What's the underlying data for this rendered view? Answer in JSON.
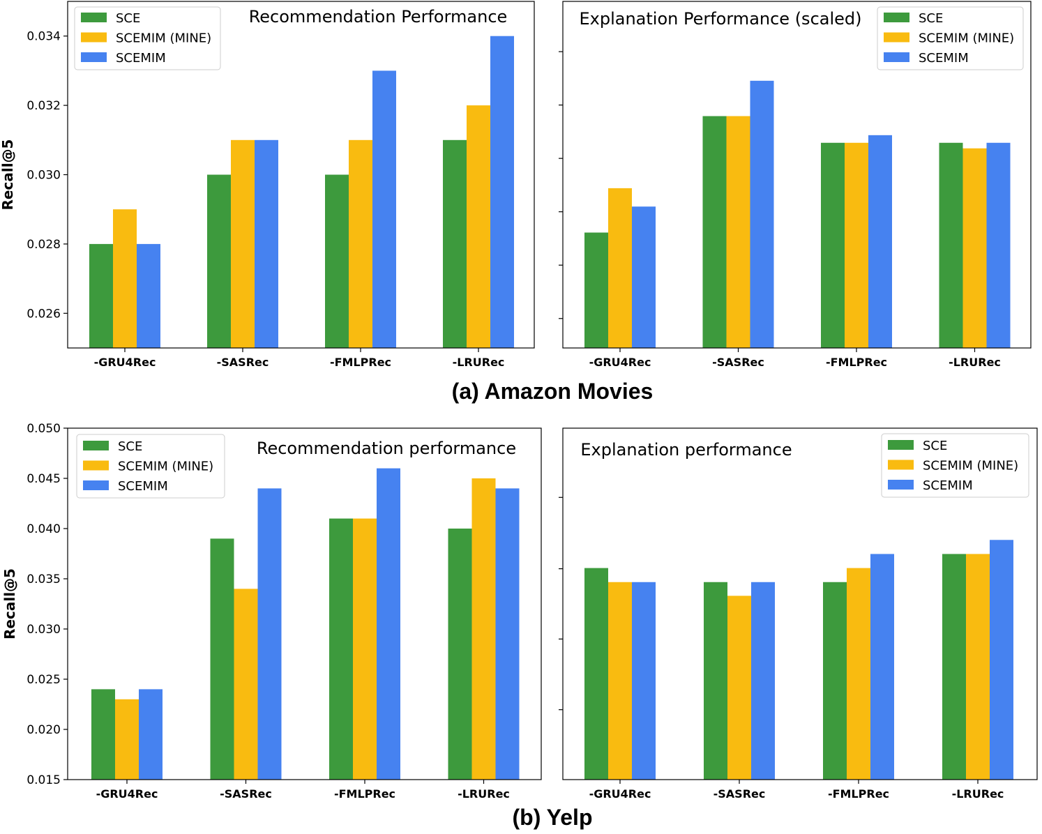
{
  "figure": {
    "captions": [
      "(a) Amazon Movies",
      "(b) Yelp"
    ]
  },
  "colors": {
    "SCE": "#3d9a3d",
    "SCEMIM (MINE)": "#f9bb10",
    "SCEMIM": "#4682f0"
  },
  "chart_data": [
    {
      "type": "bar",
      "title": "Recommendation Performance",
      "ylabel": "Recall@5",
      "categories": [
        "-GRU4Rec",
        "-SASRec",
        "-FMLPRec",
        "-LRURec"
      ],
      "ylim": [
        0.025,
        0.035
      ],
      "yticks": [
        0.026,
        0.028,
        0.03,
        0.032,
        0.034
      ],
      "yticklabels": [
        "0.026",
        "0.028",
        "0.030",
        "0.032",
        "0.034"
      ],
      "legend_position": "top-left",
      "series": [
        {
          "name": "SCE",
          "values": [
            0.028,
            0.03,
            0.03,
            0.031
          ]
        },
        {
          "name": "SCEMIM (MINE)",
          "values": [
            0.029,
            0.031,
            0.031,
            0.032
          ]
        },
        {
          "name": "SCEMIM",
          "values": [
            0.028,
            0.031,
            0.033,
            0.034
          ]
        }
      ]
    },
    {
      "type": "bar",
      "title": "Explanation Performance (scaled)",
      "ylabel": "",
      "categories": [
        "-GRU4Rec",
        "-SASRec",
        "-FMLPRec",
        "-LRURec"
      ],
      "ylim": [
        0,
        1
      ],
      "yticks": [
        0.085,
        0.239,
        0.393,
        0.547,
        0.701,
        0.855
      ],
      "yticklabels": [
        "",
        "",
        "",
        "",
        "",
        ""
      ],
      "legend_position": "top-right",
      "series": [
        {
          "name": "SCE",
          "values": [
            0.333,
            0.669,
            0.592,
            0.592
          ]
        },
        {
          "name": "SCEMIM (MINE)",
          "values": [
            0.461,
            0.669,
            0.592,
            0.576
          ]
        },
        {
          "name": "SCEMIM",
          "values": [
            0.408,
            0.771,
            0.614,
            0.592
          ]
        }
      ]
    },
    {
      "type": "bar",
      "title": "Recommendation performance",
      "ylabel": "Recall@5",
      "categories": [
        "-GRU4Rec",
        "-SASRec",
        "-FMLPRec",
        "-LRURec"
      ],
      "ylim": [
        0.015,
        0.05
      ],
      "yticks": [
        0.015,
        0.02,
        0.025,
        0.03,
        0.035,
        0.04,
        0.045,
        0.05
      ],
      "yticklabels": [
        "0.015",
        "0.020",
        "0.025",
        "0.030",
        "0.035",
        "0.040",
        "0.045",
        "0.050"
      ],
      "legend_position": "top-left",
      "series": [
        {
          "name": "SCE",
          "values": [
            0.024,
            0.039,
            0.041,
            0.04
          ]
        },
        {
          "name": "SCEMIM (MINE)",
          "values": [
            0.023,
            0.034,
            0.041,
            0.045
          ]
        },
        {
          "name": "SCEMIM",
          "values": [
            0.024,
            0.044,
            0.046,
            0.044
          ]
        }
      ]
    },
    {
      "type": "bar",
      "title": "Explanation performance",
      "ylabel": "",
      "categories": [
        "-GRU4Rec",
        "-SASRec",
        "-FMLPRec",
        "-LRURec"
      ],
      "ylim": [
        0,
        1
      ],
      "yticks": [
        0.199,
        0.4,
        0.6,
        0.803
      ],
      "yticklabels": [
        "",
        "",
        "",
        ""
      ],
      "legend_position": "top-right",
      "series": [
        {
          "name": "SCE",
          "values": [
            0.602,
            0.562,
            0.562,
            0.642
          ]
        },
        {
          "name": "SCEMIM (MINE)",
          "values": [
            0.562,
            0.523,
            0.602,
            0.642
          ]
        },
        {
          "name": "SCEMIM",
          "values": [
            0.562,
            0.562,
            0.642,
            0.682
          ]
        }
      ]
    }
  ]
}
